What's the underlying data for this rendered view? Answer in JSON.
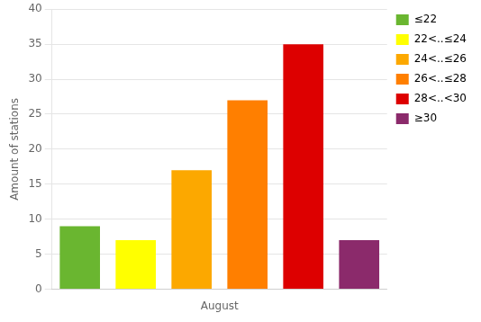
{
  "chart_data": {
    "type": "bar",
    "categories": [
      "≤22",
      "22<..≤24",
      "24<..≤26",
      "26<..≤28",
      "28<..<30",
      "≥30"
    ],
    "values": [
      9,
      7,
      17,
      27,
      35,
      7
    ],
    "colors": [
      "#6ab630",
      "#ffff00",
      "#fca800",
      "#ff7f00",
      "#dd0000",
      "#8b2a6b"
    ],
    "xlabel": "August",
    "ylabel": "Amount of stations",
    "ylim": [
      0,
      40
    ],
    "yticks": [
      0,
      5,
      10,
      15,
      20,
      25,
      30,
      35,
      40
    ],
    "grid": true,
    "legend": "upper right",
    "tick_labels": "y"
  }
}
